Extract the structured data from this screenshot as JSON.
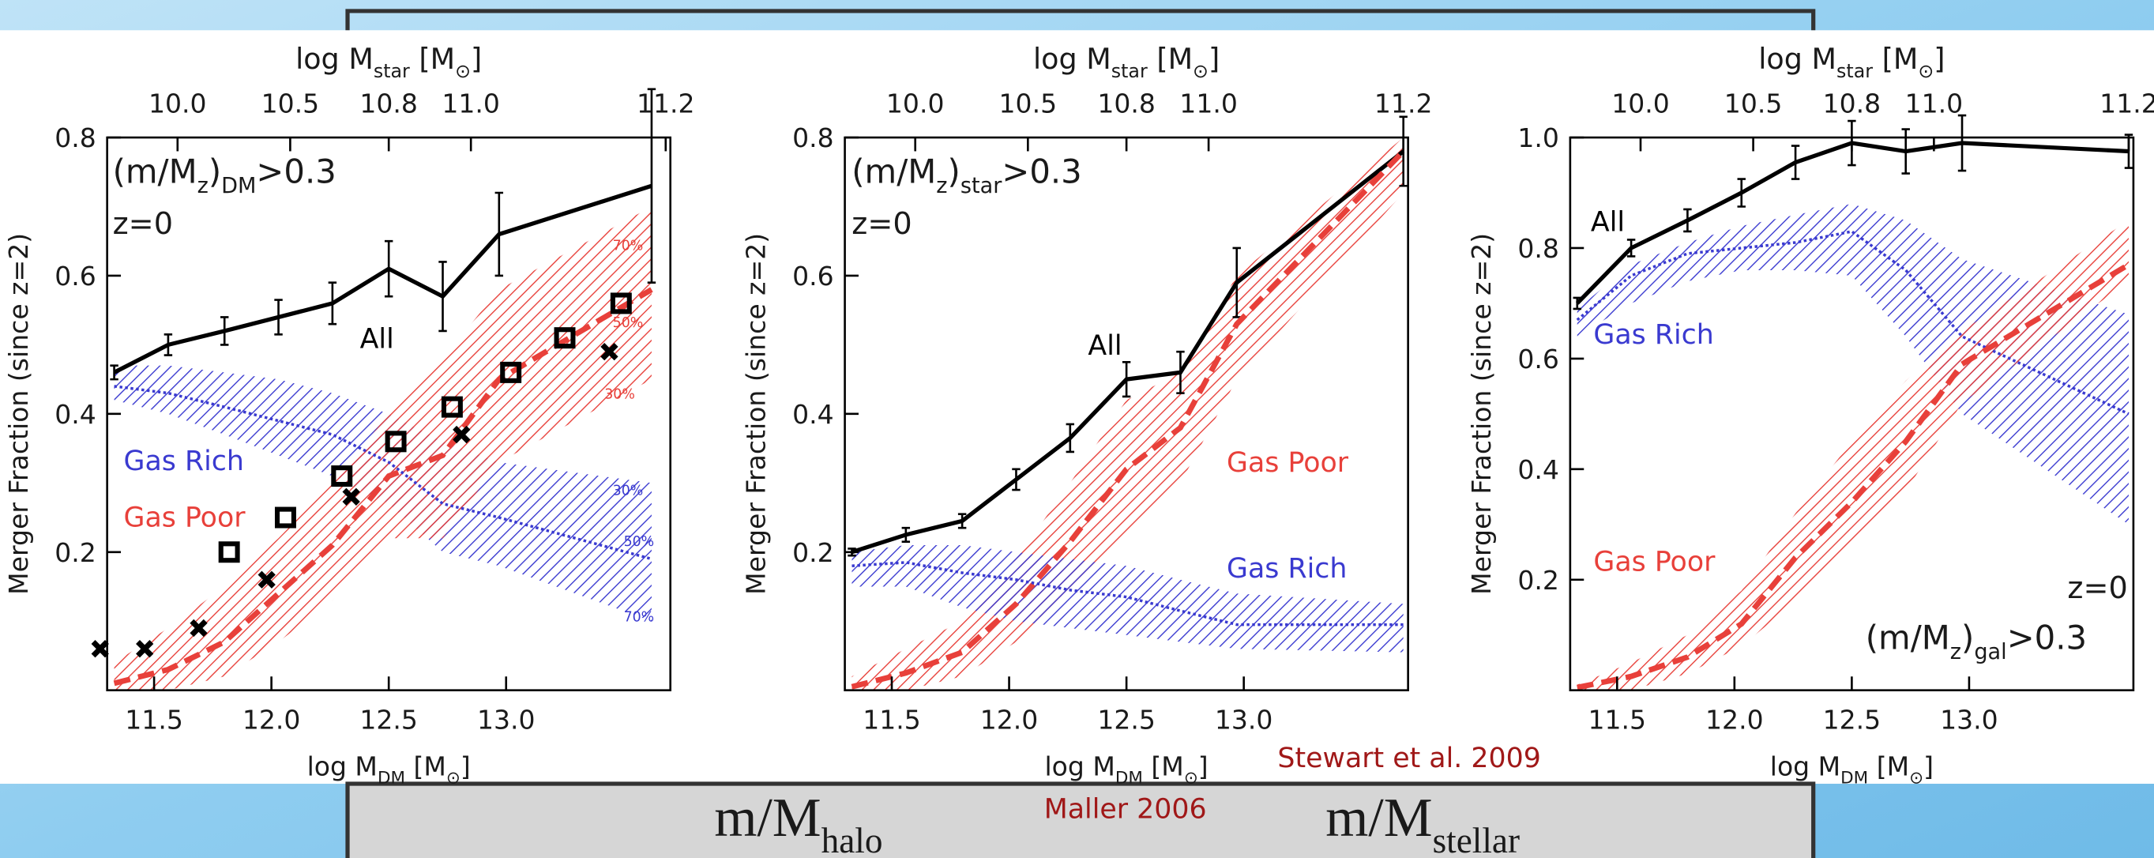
{
  "slide": {
    "halo_label": [
      "m/M",
      "halo"
    ],
    "maller": "Maller 2006",
    "stewart": "Stewart et al. 2009",
    "stellar_label": [
      "m/M",
      "stellar"
    ]
  },
  "chart_data": [
    {
      "type": "line",
      "x_label": [
        "log M",
        "DM",
        " [M",
        "⊙",
        "]"
      ],
      "x2_label": [
        "log M",
        "star",
        " [M",
        "⊙",
        "]"
      ],
      "y_label": "Merger Fraction (since z=2)",
      "xlim": [
        11.3,
        13.7
      ],
      "xticks": [
        11.5,
        {
          "value": 12,
          "label": "12.0"
        },
        12.5,
        {
          "value": 13,
          "label": "13.0"
        }
      ],
      "x2ticks": [
        {
          "value": 11.6,
          "label": "10.0"
        },
        {
          "value": 12.08,
          "label": "10.5"
        },
        {
          "value": 12.5,
          "label": "10.8"
        },
        {
          "value": 12.85,
          "label": "11.0"
        },
        {
          "value": 13.68,
          "label": "11.2"
        }
      ],
      "ylim": [
        0,
        0.8
      ],
      "yticks": [
        0.2,
        0.4,
        0.6,
        0.8
      ],
      "x": [
        11.33,
        11.56,
        11.8,
        12.03,
        12.26,
        12.5,
        12.73,
        12.97,
        13.62
      ],
      "series": [
        {
          "name": "All",
          "color": "#000000",
          "style": "line",
          "values": [
            0.46,
            0.5,
            0.52,
            0.54,
            0.56,
            0.61,
            0.57,
            0.66,
            0.73
          ],
          "errors": [
            0.01,
            0.015,
            0.02,
            0.025,
            0.03,
            0.04,
            0.05,
            0.06,
            0.14
          ]
        },
        {
          "name": "Gas Rich",
          "color": "#3a3ad0",
          "style": "band",
          "values": [
            0.44,
            0.43,
            0.41,
            0.39,
            0.37,
            0.33,
            0.27,
            0.25,
            0.19
          ],
          "hi": [
            0.47,
            0.47,
            0.46,
            0.45,
            0.43,
            0.4,
            0.36,
            0.33,
            0.3
          ],
          "lo": [
            0.42,
            0.4,
            0.37,
            0.34,
            0.31,
            0.27,
            0.2,
            0.18,
            0.1
          ]
        },
        {
          "name": "Gas Poor",
          "color": "#e8403a",
          "style": "band",
          "values": [
            0.01,
            0.03,
            0.07,
            0.14,
            0.21,
            0.31,
            0.34,
            0.45,
            0.58
          ],
          "hi": [
            0.04,
            0.09,
            0.15,
            0.22,
            0.3,
            0.4,
            0.48,
            0.58,
            0.7
          ],
          "lo": [
            0,
            0,
            0.02,
            0.07,
            0.13,
            0.22,
            0.22,
            0.33,
            0.45
          ]
        },
        {
          "color": "#000000",
          "style": "square",
          "x": [
            11.82,
            12.06,
            12.3,
            12.53,
            12.77,
            13.02,
            13.25,
            13.49
          ],
          "values": [
            0.2,
            0.25,
            0.31,
            0.36,
            0.41,
            0.46,
            0.51,
            0.56
          ]
        },
        {
          "color": "#000000",
          "style": "cross",
          "x": [
            11.27,
            11.46,
            11.69,
            11.98,
            12.34,
            12.81,
            13.44
          ],
          "values": [
            0.06,
            0.06,
            0.09,
            0.16,
            0.28,
            0.37,
            0.49
          ]
        }
      ],
      "annotations": [
        {
          "text": [
            "(m/M",
            "z",
            ")",
            "DM",
            ">0.3"
          ],
          "color": "#1a1a1a"
        },
        {
          "text": [
            "z=0"
          ],
          "color": "#1a1a1a"
        },
        {
          "text": [
            "70%"
          ],
          "color": "#e8403a"
        },
        {
          "text": [
            "50%"
          ],
          "color": "#e8403a"
        },
        {
          "text": [
            "30%"
          ],
          "color": "#e8403a"
        },
        {
          "text": [
            "30%"
          ],
          "color": "#3a3ad0"
        },
        {
          "text": [
            "50%"
          ],
          "color": "#3a3ad0"
        },
        {
          "text": [
            "70%"
          ],
          "color": "#3a3ad0"
        }
      ]
    },
    {
      "type": "line",
      "x_label": [
        "log M",
        "DM",
        " [M",
        "⊙",
        "]"
      ],
      "x2_label": [
        "log M",
        "star",
        " [M",
        "⊙",
        "]"
      ],
      "y_label": "Merger Fraction (since z=2)",
      "xlim": [
        11.3,
        13.7
      ],
      "xticks": [
        11.5,
        {
          "value": 12,
          "label": "12.0"
        },
        12.5,
        {
          "value": 13,
          "label": "13.0"
        }
      ],
      "x2ticks": [
        {
          "value": 11.6,
          "label": "10.0"
        },
        {
          "value": 12.08,
          "label": "10.5"
        },
        {
          "value": 12.5,
          "label": "10.8"
        },
        {
          "value": 12.85,
          "label": "11.0"
        },
        {
          "value": 13.68,
          "label": "11.2"
        }
      ],
      "ylim": [
        0,
        0.8
      ],
      "yticks": [
        0.2,
        0.4,
        0.6,
        0.8
      ],
      "x": [
        11.33,
        11.56,
        11.8,
        12.03,
        12.26,
        12.5,
        12.73,
        12.97,
        13.68
      ],
      "series": [
        {
          "name": "All",
          "color": "#000000",
          "style": "line",
          "values": [
            0.2,
            0.225,
            0.245,
            0.305,
            0.365,
            0.45,
            0.46,
            0.59,
            0.78
          ],
          "errors": [
            0.005,
            0.01,
            0.01,
            0.015,
            0.02,
            0.025,
            0.03,
            0.05,
            0.05
          ]
        },
        {
          "name": "Gas Poor",
          "color": "#e8403a",
          "style": "band",
          "values": [
            0.005,
            0.025,
            0.055,
            0.125,
            0.215,
            0.32,
            0.38,
            0.53,
            0.78
          ],
          "hi": [
            0.02,
            0.06,
            0.1,
            0.19,
            0.3,
            0.42,
            0.46,
            0.6,
            0.8
          ],
          "lo": [
            0,
            0,
            0.02,
            0.07,
            0.14,
            0.22,
            0.3,
            0.45,
            0.72
          ]
        },
        {
          "name": "Gas Rich",
          "color": "#3a3ad0",
          "style": "band",
          "values": [
            0.18,
            0.185,
            0.17,
            0.16,
            0.145,
            0.135,
            0.115,
            0.095,
            0.095
          ],
          "hi": [
            0.2,
            0.21,
            0.21,
            0.2,
            0.19,
            0.18,
            0.16,
            0.14,
            0.125
          ],
          "lo": [
            0.15,
            0.15,
            0.12,
            0.1,
            0.09,
            0.08,
            0.07,
            0.06,
            0.055
          ]
        }
      ],
      "annotations": [
        {
          "text": [
            "(m/M",
            "z",
            ")",
            "star",
            ">0.3"
          ],
          "color": "#1a1a1a"
        },
        {
          "text": [
            "z=0"
          ],
          "color": "#1a1a1a"
        }
      ]
    },
    {
      "type": "line",
      "x_label": [
        "log M",
        "DM",
        " [M",
        "⊙",
        "]"
      ],
      "x2_label": [
        "log M",
        "star",
        " [M",
        "⊙",
        "]"
      ],
      "y_label": "Merger Fraction (since z=2)",
      "xlim": [
        11.3,
        13.7
      ],
      "xticks": [
        11.5,
        {
          "value": 12,
          "label": "12.0"
        },
        12.5,
        {
          "value": 13,
          "label": "13.0"
        }
      ],
      "x2ticks": [
        {
          "value": 11.6,
          "label": "10.0"
        },
        {
          "value": 12.08,
          "label": "10.5"
        },
        {
          "value": 12.5,
          "label": "10.8"
        },
        {
          "value": 12.85,
          "label": "11.0"
        },
        {
          "value": 13.68,
          "label": "11.2"
        }
      ],
      "ylim": [
        0,
        1
      ],
      "yticks": [
        0.2,
        0.4,
        0.6,
        0.8,
        {
          "value": 1,
          "label": "1.0"
        }
      ],
      "x": [
        11.33,
        11.56,
        11.8,
        12.03,
        12.26,
        12.5,
        12.73,
        12.97,
        13.68
      ],
      "series": [
        {
          "name": "All",
          "color": "#000000",
          "style": "line",
          "values": [
            0.7,
            0.8,
            0.85,
            0.9,
            0.955,
            0.99,
            0.975,
            0.99,
            0.975
          ],
          "errors": [
            0.01,
            0.015,
            0.02,
            0.025,
            0.03,
            0.04,
            0.04,
            0.05,
            0.03
          ]
        },
        {
          "name": "Gas Rich",
          "color": "#3a3ad0",
          "style": "band",
          "values": [
            0.67,
            0.75,
            0.79,
            0.8,
            0.81,
            0.83,
            0.76,
            0.64,
            0.5
          ],
          "hi": [
            0.69,
            0.77,
            0.81,
            0.84,
            0.86,
            0.88,
            0.85,
            0.78,
            0.68
          ],
          "lo": [
            0.64,
            0.7,
            0.74,
            0.76,
            0.76,
            0.75,
            0.64,
            0.5,
            0.3
          ]
        },
        {
          "name": "Gas Poor",
          "color": "#e8403a",
          "style": "band",
          "values": [
            0.005,
            0.025,
            0.06,
            0.12,
            0.24,
            0.34,
            0.45,
            0.59,
            0.77
          ],
          "hi": [
            0.01,
            0.05,
            0.1,
            0.18,
            0.32,
            0.45,
            0.56,
            0.65,
            0.85
          ],
          "lo": [
            0,
            0,
            0.03,
            0.08,
            0.16,
            0.27,
            0.36,
            0.52,
            0.74
          ]
        }
      ],
      "annotations": [
        {
          "text": [
            "z=0"
          ],
          "color": "#1a1a1a"
        },
        {
          "text": [
            "(m/M",
            "z",
            ")",
            "gal",
            ">0.3"
          ],
          "color": "#1a1a1a"
        }
      ]
    }
  ]
}
